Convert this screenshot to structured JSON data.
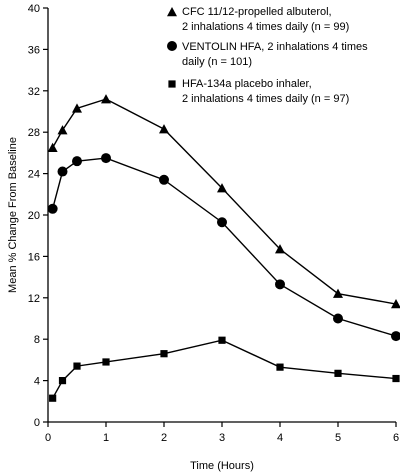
{
  "chart_data": {
    "type": "line",
    "title": "",
    "xlabel": "Time (Hours)",
    "ylabel": "Mean % Change From Baseline",
    "xlim": [
      0,
      6
    ],
    "ylim": [
      0,
      40
    ],
    "xticks": [
      0,
      1,
      2,
      3,
      4,
      5,
      6
    ],
    "yticks": [
      0,
      4,
      8,
      12,
      16,
      20,
      24,
      28,
      32,
      36,
      40
    ],
    "x_tick_labels": [
      "0",
      "1",
      "2",
      "3",
      "4",
      "5",
      "6"
    ],
    "y_tick_labels": [
      "0",
      "4",
      "8",
      "12",
      "16",
      "20",
      "24",
      "28",
      "32",
      "36",
      "40"
    ],
    "grid": false,
    "legend_position": "top-right",
    "series": [
      {
        "name": "CFC 11/12-propelled albuterol, 2 inhalations 4 times daily (n = 99)",
        "legend_lines": [
          "CFC 11/12-propelled albuterol,",
          "2 inhalations 4 times daily (n = 99)"
        ],
        "marker": "triangle",
        "x": [
          0.08,
          0.25,
          0.5,
          1,
          2,
          3,
          4,
          5,
          6
        ],
        "y": [
          26.5,
          28.2,
          30.3,
          31.2,
          28.3,
          22.6,
          16.7,
          12.4,
          11.4
        ]
      },
      {
        "name": "VENTOLIN HFA, 2 inhalations 4 times daily (n = 101)",
        "legend_lines": [
          "VENTOLIN HFA, 2 inhalations 4 times",
          "daily (n = 101)"
        ],
        "marker": "circle",
        "x": [
          0.08,
          0.25,
          0.5,
          1,
          2,
          3,
          4,
          5,
          6
        ],
        "y": [
          20.6,
          24.2,
          25.2,
          25.5,
          23.4,
          19.3,
          13.3,
          10.0,
          8.3
        ]
      },
      {
        "name": "HFA-134a placebo inhaler, 2 inhalations 4 times daily (n = 97)",
        "legend_lines": [
          "HFA-134a placebo inhaler,",
          "2 inhalations 4 times daily (n = 97)"
        ],
        "marker": "square",
        "x": [
          0.08,
          0.25,
          0.5,
          1,
          2,
          3,
          4,
          5,
          6
        ],
        "y": [
          2.3,
          4.0,
          5.4,
          5.8,
          6.6,
          7.9,
          5.3,
          4.7,
          4.2
        ]
      }
    ]
  }
}
